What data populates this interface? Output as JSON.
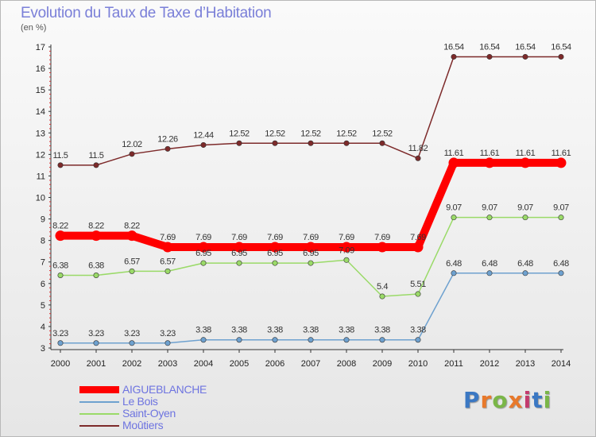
{
  "title": "Evolution du Taux de Taxe d’Habitation",
  "unit": "(en %)",
  "logo": "Proxiti",
  "chart_data": {
    "type": "line",
    "title": "Evolution du Taux de Taxe d’Habitation",
    "ylabel": "(en %)",
    "x": [
      "2000",
      "2001",
      "2002",
      "2003",
      "2004",
      "2005",
      "2006",
      "2007",
      "2008",
      "2009",
      "2010",
      "2011",
      "2012",
      "2013",
      "2014"
    ],
    "ylim": [
      3,
      17
    ],
    "yticks": [
      3,
      4,
      5,
      6,
      7,
      8,
      9,
      10,
      11,
      12,
      13,
      14,
      15,
      16,
      17
    ],
    "grid": false,
    "legend_position": "bottom-left",
    "series": [
      {
        "name": "AIGUEBLANCHE",
        "color": "#ff0000",
        "values": [
          8.22,
          8.22,
          8.22,
          7.69,
          7.69,
          7.69,
          7.69,
          7.69,
          7.69,
          7.69,
          7.69,
          11.61,
          11.61,
          11.61,
          11.61
        ],
        "labels": [
          "8.22",
          "8.22",
          "8.22",
          "7.69",
          "7.69",
          "7.69",
          "7.69",
          "7.69",
          "7.69",
          "7.69",
          "7.69",
          "11.61",
          "11.61",
          "11.61",
          "11.61"
        ]
      },
      {
        "name": "Le Bois",
        "color": "#6ea1cf",
        "values": [
          3.23,
          3.23,
          3.23,
          3.23,
          3.38,
          3.38,
          3.38,
          3.38,
          3.38,
          3.38,
          3.38,
          6.48,
          6.48,
          6.48,
          6.48
        ],
        "labels": [
          "3.23",
          "3.23",
          "3.23",
          "3.23",
          "3.38",
          "3.38",
          "3.38",
          "3.38",
          "3.38",
          "3.38",
          "3.38",
          "6.48",
          "6.48",
          "6.48",
          "6.48"
        ]
      },
      {
        "name": "Saint-Oyen",
        "color": "#9ada68",
        "values": [
          6.38,
          6.38,
          6.57,
          6.57,
          6.95,
          6.95,
          6.95,
          6.95,
          7.09,
          5.4,
          5.51,
          9.07,
          9.07,
          9.07,
          9.07
        ],
        "labels": [
          "6.38",
          "6.38",
          "6.57",
          "6.57",
          "6.95",
          "6.95",
          "6.95",
          "6.95",
          "7.09",
          "5.4",
          "5.51",
          "9.07",
          "9.07",
          "9.07",
          "9.07"
        ]
      },
      {
        "name": "Moûtiers",
        "color": "#7d2a2a",
        "values": [
          11.5,
          11.5,
          12.02,
          12.26,
          12.44,
          12.52,
          12.52,
          12.52,
          12.52,
          12.52,
          11.82,
          16.54,
          16.54,
          16.54,
          16.54
        ],
        "labels": [
          "11.5",
          "11.5",
          "12.02",
          "12.26",
          "12.44",
          "12.52",
          "12.52",
          "12.52",
          "12.52",
          "12.52",
          "11.82",
          "16.54",
          "16.54",
          "16.54",
          "16.54"
        ]
      }
    ]
  }
}
